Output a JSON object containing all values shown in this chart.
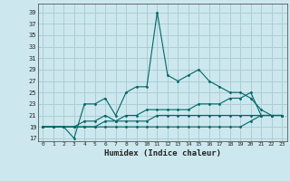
{
  "xlabel": "Humidex (Indice chaleur)",
  "bg_color": "#cce8ee",
  "grid_color": "#aacdd6",
  "line_color": "#006666",
  "x_values": [
    0,
    1,
    2,
    3,
    4,
    5,
    6,
    7,
    8,
    9,
    10,
    11,
    12,
    13,
    14,
    15,
    16,
    17,
    18,
    19,
    20,
    21,
    22,
    23
  ],
  "series_main": [
    19,
    19,
    19,
    17,
    23,
    23,
    24,
    21,
    25,
    26,
    26,
    39,
    28,
    27,
    28,
    29,
    27,
    26,
    25,
    25,
    24,
    22,
    21,
    21
  ],
  "series_line2": [
    19,
    19,
    19,
    19,
    20,
    20,
    21,
    20,
    21,
    21,
    22,
    22,
    22,
    22,
    22,
    23,
    23,
    23,
    24,
    24,
    25,
    21,
    21,
    21
  ],
  "series_line3": [
    19,
    19,
    19,
    19,
    19,
    19,
    20,
    20,
    20,
    20,
    20,
    21,
    21,
    21,
    21,
    21,
    21,
    21,
    21,
    21,
    21,
    21,
    21,
    21
  ],
  "series_line4": [
    19,
    19,
    19,
    19,
    19,
    19,
    19,
    19,
    19,
    19,
    19,
    19,
    19,
    19,
    19,
    19,
    19,
    19,
    19,
    19,
    20,
    21,
    21,
    21
  ],
  "yticks": [
    17,
    19,
    21,
    23,
    25,
    27,
    29,
    31,
    33,
    35,
    37,
    39
  ],
  "ylim": [
    16.5,
    40.5
  ],
  "xlim": [
    -0.5,
    23.5
  ]
}
